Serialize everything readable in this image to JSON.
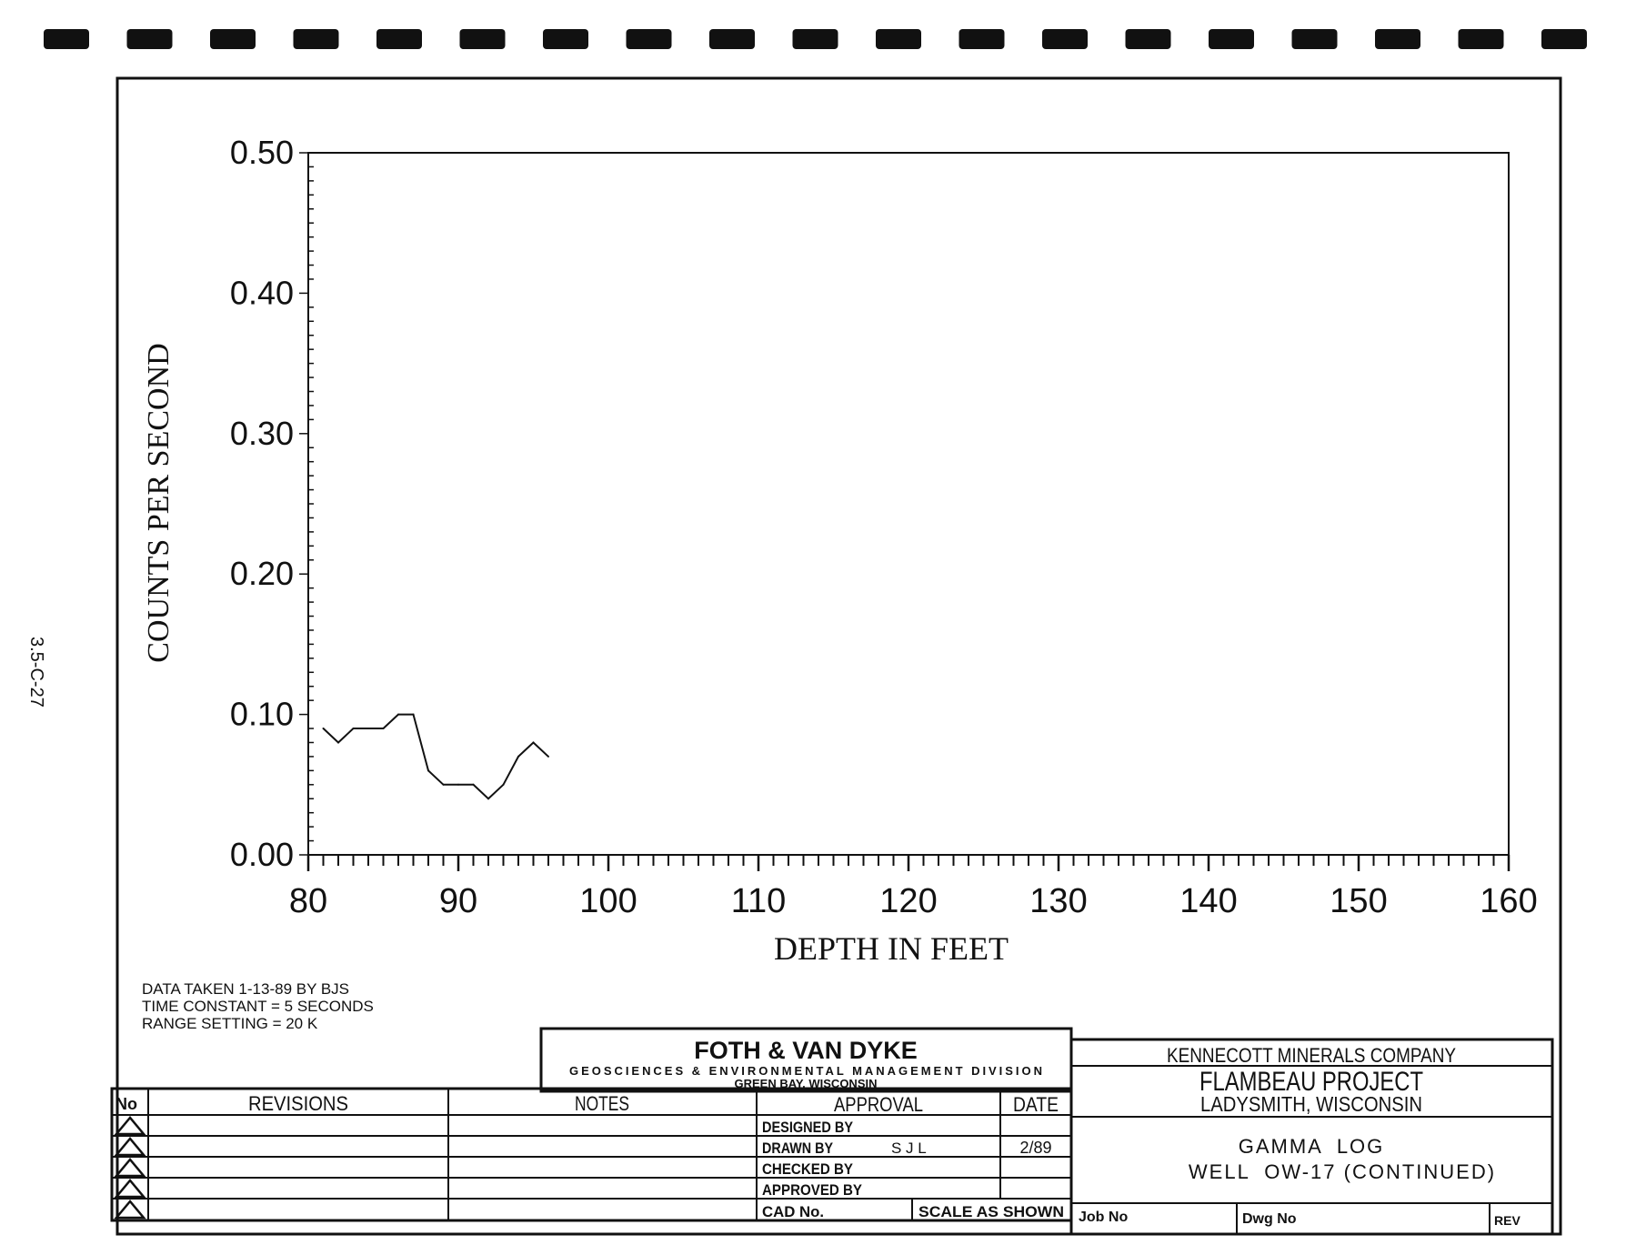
{
  "page_code": "3.5-C-27",
  "chart_data": {
    "type": "line",
    "xlabel": "DEPTH IN FEET",
    "ylabel": "COUNTS PER SECOND",
    "xlim": [
      80,
      160
    ],
    "ylim": [
      0.0,
      0.5
    ],
    "x_ticks": [
      "80",
      "90",
      "100",
      "110",
      "120",
      "130",
      "140",
      "150",
      "160"
    ],
    "y_ticks": [
      "0.00",
      "0.10",
      "0.20",
      "0.30",
      "0.40",
      "0.50"
    ],
    "grid": false,
    "series": [
      {
        "x": [
          81,
          82,
          83,
          84,
          85,
          86,
          87,
          88,
          89,
          90,
          91,
          92,
          93,
          94,
          95,
          96
        ],
        "y": [
          0.09,
          0.08,
          0.09,
          0.09,
          0.09,
          0.1,
          0.1,
          0.06,
          0.05,
          0.05,
          0.05,
          0.04,
          0.05,
          0.07,
          0.08,
          0.07
        ]
      }
    ]
  },
  "notes": [
    "DATA TAKEN 1-13-89 BY BJS",
    "TIME CONSTANT = 5 SECONDS",
    "RANGE SETTING = 20 K"
  ],
  "firm": {
    "name": "FOTH & VAN DYKE",
    "division": "GEOSCIENCES & ENVIRONMENTAL MANAGEMENT DIVISION",
    "location": "GREEN BAY, WISCONSIN"
  },
  "revisions_table": {
    "no_header": "No",
    "revisions_header": "REVISIONS",
    "notes_header": "NOTES",
    "approval_header": "APPROVAL",
    "date_header": "DATE",
    "approval_rows": [
      {
        "label": "DESIGNED BY",
        "name": "",
        "date": ""
      },
      {
        "label": "DRAWN BY",
        "name": "S J L",
        "date": "2/89"
      },
      {
        "label": "CHECKED BY",
        "name": "",
        "date": ""
      },
      {
        "label": "APPROVED BY",
        "name": "",
        "date": ""
      }
    ],
    "cad_label": "CAD No.",
    "scale_label": "SCALE AS SHOWN"
  },
  "client_block": {
    "company": "KENNECOTT MINERALS COMPANY",
    "project": "FLAMBEAU PROJECT",
    "location": "LADYSMITH, WISCONSIN",
    "title_line1": "GAMMA  LOG",
    "title_line2": "WELL  OW-17 (CONTINUED)",
    "job_label": "Job No",
    "dwg_label": "Dwg No",
    "rev_label": "REV"
  }
}
